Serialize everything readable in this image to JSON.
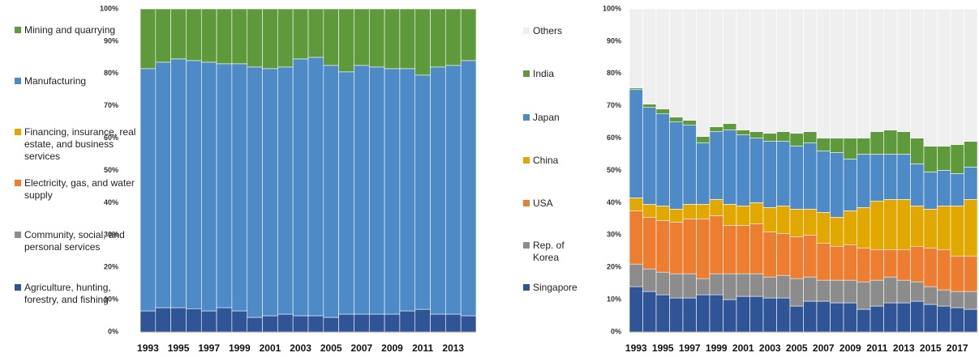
{
  "chart_data": [
    {
      "type": "bar",
      "stacked": true,
      "categories": [
        "1993",
        null,
        "1995",
        null,
        "1997",
        null,
        "1999",
        null,
        "2001",
        null,
        "2003",
        null,
        "2005",
        null,
        "2007",
        null,
        "2009",
        null,
        "2011",
        null,
        "2013",
        null
      ],
      "series": [
        {
          "name": "Agriculture, hunting, forestry, and fishing",
          "color": "#2f5597",
          "values": [
            6.5,
            7.5,
            7.5,
            7.2,
            6.5,
            7.5,
            6.5,
            4.5,
            5,
            5.5,
            5,
            5,
            4.5,
            5.5,
            5.5,
            5.5,
            5.5,
            6.5,
            7,
            5.5,
            5.5,
            5
          ]
        },
        {
          "name": "Community, social, and personal services",
          "color": "#8c8c8c",
          "values": [
            0,
            0,
            0,
            0,
            0,
            0,
            0,
            0,
            0,
            0,
            0,
            0,
            0,
            0,
            0,
            0,
            0,
            0,
            0,
            0,
            0,
            0
          ]
        },
        {
          "name": "Electricity, gas, and water supply",
          "color": "#ed7d31",
          "values": [
            0,
            0,
            0,
            0,
            0,
            0,
            0,
            0,
            0,
            0,
            0,
            0,
            0,
            0,
            0,
            0,
            0,
            0,
            0,
            0,
            0,
            0
          ]
        },
        {
          "name": "Financing, insurance, real estate, and business services",
          "color": "#e0a800",
          "values": [
            0,
            0,
            0,
            0,
            0,
            0,
            0,
            0,
            0,
            0,
            0,
            0,
            0,
            0,
            0,
            0,
            0,
            0,
            0,
            0,
            0,
            0
          ]
        },
        {
          "name": "Manufacturing",
          "color": "#4e8ac6",
          "values": [
            75,
            76,
            77,
            76.8,
            77,
            75.5,
            76.5,
            77.5,
            76.5,
            76.5,
            79.5,
            80,
            78,
            75,
            77,
            76.5,
            76,
            75,
            72.5,
            76.5,
            77,
            79
          ]
        },
        {
          "name": "Mining and quarrying",
          "color": "#5e9a3c",
          "values": [
            18.5,
            16.5,
            15.5,
            16,
            16.5,
            17,
            17,
            18,
            18.5,
            18,
            15.5,
            15,
            17.5,
            19.5,
            17.5,
            18,
            18.5,
            18.5,
            20.5,
            18,
            17.5,
            16
          ]
        }
      ],
      "ylim": [
        0,
        100
      ],
      "yticks": [
        {
          "value": 0,
          "label": "0%"
        },
        {
          "value": 10,
          "label": "10%"
        },
        {
          "value": 20,
          "label": "20%"
        },
        {
          "value": 30,
          "label": "30%"
        },
        {
          "value": 40,
          "label": "40%"
        },
        {
          "value": 50,
          "label": "50%"
        },
        {
          "value": 60,
          "label": "60%"
        },
        {
          "value": 70,
          "label": "70%"
        },
        {
          "value": 80,
          "label": "80%"
        },
        {
          "value": 90,
          "label": "90%"
        },
        {
          "value": 100,
          "label": "100%"
        }
      ]
    },
    {
      "type": "bar",
      "stacked": true,
      "categories": [
        "1993",
        null,
        "1995",
        null,
        "1997",
        null,
        "1999",
        null,
        "2001",
        null,
        "2003",
        null,
        "2005",
        null,
        "2007",
        null,
        "2009",
        null,
        "2011",
        null,
        "2013",
        null,
        "2015",
        null,
        "2017",
        null
      ],
      "series": [
        {
          "name": "Singapore",
          "color": "#2f5597",
          "values": [
            14,
            12.5,
            11.5,
            10.5,
            10.5,
            11.5,
            11.5,
            10,
            11,
            11,
            10.5,
            10.5,
            8,
            9.5,
            9.5,
            9,
            9,
            7,
            8,
            9,
            9,
            9.5,
            8.5,
            8,
            7.5,
            7
          ]
        },
        {
          "name": "Rep. of Korea",
          "color": "#8c8c8c",
          "values": [
            7,
            7,
            7,
            7.5,
            7.5,
            5,
            6.5,
            8,
            7,
            7,
            6.5,
            7,
            8.5,
            7.5,
            6.5,
            7,
            7,
            8.5,
            8,
            8,
            7,
            6,
            5.5,
            5,
            5,
            5.5
          ]
        },
        {
          "name": "USA",
          "color": "#ed7d31",
          "values": [
            16.5,
            16,
            16,
            16,
            17,
            18.5,
            18,
            15,
            15,
            15.5,
            14,
            13,
            13,
            13,
            11.5,
            10.5,
            11,
            10.5,
            9.5,
            8.5,
            9.5,
            11,
            12,
            12.5,
            11,
            11
          ]
        },
        {
          "name": "China",
          "color": "#e0a800",
          "values": [
            4,
            4,
            4.5,
            4,
            4.5,
            4.5,
            5,
            6.5,
            6,
            6.5,
            7.5,
            8.5,
            8.5,
            8,
            9.5,
            9,
            10.5,
            12.5,
            15,
            15.5,
            15.5,
            12.5,
            12,
            13.5,
            15.5,
            17.5
          ]
        },
        {
          "name": "Japan",
          "color": "#4e8ac6",
          "values": [
            33.5,
            30,
            28.5,
            27,
            24.5,
            19,
            21,
            23,
            22,
            20,
            20.5,
            20,
            19.5,
            20.5,
            19,
            20,
            16,
            16.5,
            14.5,
            14,
            14,
            13,
            11.5,
            11,
            10,
            10
          ]
        },
        {
          "name": "India",
          "color": "#5e9a3c",
          "values": [
            0.5,
            1,
            1.5,
            1.5,
            1.5,
            2,
            1.5,
            2,
            1.5,
            2,
            2.5,
            3,
            4,
            3.5,
            4,
            4.5,
            6.5,
            5,
            7,
            7.5,
            7,
            8,
            8,
            7.5,
            9,
            8
          ]
        },
        {
          "name": "Others",
          "color": "#efefef",
          "values": [
            24.5,
            29.5,
            31,
            33.5,
            34.5,
            39.5,
            36.5,
            35.5,
            37.5,
            38,
            38.5,
            38,
            38.5,
            38,
            40,
            40,
            40,
            40,
            38,
            37.5,
            38,
            40,
            42.5,
            42.5,
            42,
            41
          ]
        }
      ],
      "ylim": [
        0,
        100
      ],
      "yticks": [
        {
          "value": 0,
          "label": "0%"
        },
        {
          "value": 10,
          "label": "10%"
        },
        {
          "value": 20,
          "label": "20%"
        },
        {
          "value": 30,
          "label": "30%"
        },
        {
          "value": 40,
          "label": "40%"
        },
        {
          "value": 50,
          "label": "50%"
        },
        {
          "value": 60,
          "label": "60%"
        },
        {
          "value": 70,
          "label": "70%"
        },
        {
          "value": 80,
          "label": "80%"
        },
        {
          "value": 90,
          "label": "90%"
        },
        {
          "value": 100,
          "label": "100%"
        }
      ]
    }
  ]
}
